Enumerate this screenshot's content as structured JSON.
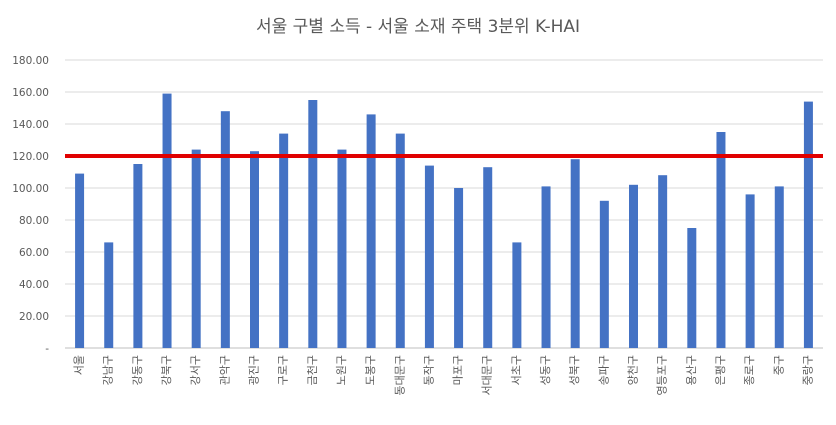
{
  "chart_data": {
    "type": "bar",
    "title": "서울 구별 소득 - 서울 소재 주택 3분위 K-HAI",
    "xlabel": "",
    "ylabel": "",
    "ylim": [
      0,
      180
    ],
    "yticks": [
      0,
      20,
      40,
      60,
      80,
      100,
      120,
      140,
      160,
      180
    ],
    "ytick_labels": [
      "-",
      "20.00",
      "40.00",
      "60.00",
      "80.00",
      "100.00",
      "120.00",
      "140.00",
      "160.00",
      "180.00"
    ],
    "grid": true,
    "categories": [
      "서울",
      "강남구",
      "강동구",
      "강북구",
      "강서구",
      "관악구",
      "광진구",
      "구로구",
      "금천구",
      "노원구",
      "도봉구",
      "동대문구",
      "동작구",
      "마포구",
      "서대문구",
      "서초구",
      "성동구",
      "성북구",
      "송파구",
      "양천구",
      "영등포구",
      "용산구",
      "은평구",
      "종로구",
      "중구",
      "중랑구"
    ],
    "values": [
      109,
      66,
      115,
      159,
      124,
      148,
      123,
      134,
      155,
      124,
      146,
      134,
      114,
      100,
      113,
      66,
      101,
      118,
      92,
      102,
      108,
      75,
      135,
      96,
      101,
      154
    ],
    "reference_line": {
      "value": 120,
      "color": "#e00000"
    },
    "colors": {
      "bar": "#4472c4",
      "reference_line": "#e00000",
      "grid": "#d9d9d9",
      "text": "#595959"
    }
  }
}
